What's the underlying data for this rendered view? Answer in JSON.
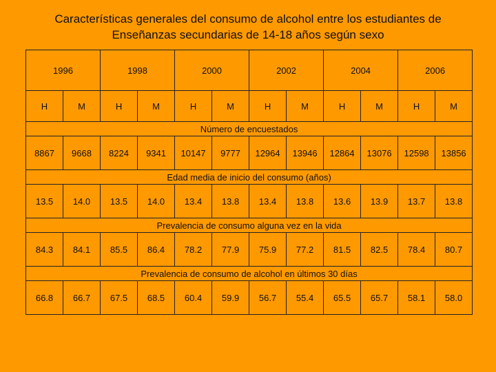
{
  "title_line1": "Características generales del consumo de alcohol entre los estudiantes de",
  "title_line2": "Enseñanzas secundarias de 14-18 años según sexo",
  "years": [
    "1996",
    "1998",
    "2000",
    "2002",
    "2004",
    "2006"
  ],
  "sex_labels": [
    "H",
    "M",
    "H",
    "M",
    "H",
    "M",
    "H",
    "M",
    "H",
    "M",
    "H",
    "M"
  ],
  "sections": [
    {
      "label": "Número de encuestados",
      "values": [
        "8867",
        "9668",
        "8224",
        "9341",
        "10147",
        "9777",
        "12964",
        "13946",
        "12864",
        "13076",
        "12598",
        "13856"
      ]
    },
    {
      "label": "Edad media de inicio del consumo (años)",
      "values": [
        "13.5",
        "14.0",
        "13.5",
        "14.0",
        "13.4",
        "13.8",
        "13.4",
        "13.8",
        "13.6",
        "13.9",
        "13.7",
        "13.8"
      ]
    },
    {
      "label": "Prevalencia de consumo alguna vez en la vida",
      "values": [
        "84.3",
        "84.1",
        "85.5",
        "86.4",
        "78.2",
        "77.9",
        "75.9",
        "77.2",
        "81.5",
        "82.5",
        "78.4",
        "80.7"
      ]
    },
    {
      "label": "Prevalencia de consumo de alcohol en últimos 30 días",
      "values": [
        "66.8",
        "66.7",
        "67.5",
        "68.5",
        "60.4",
        "59.9",
        "56.7",
        "55.4",
        "65.5",
        "65.7",
        "58.1",
        "58.0"
      ]
    }
  ],
  "colors": {
    "background": "#FF9900",
    "border": "#222222",
    "text": "#111111"
  }
}
